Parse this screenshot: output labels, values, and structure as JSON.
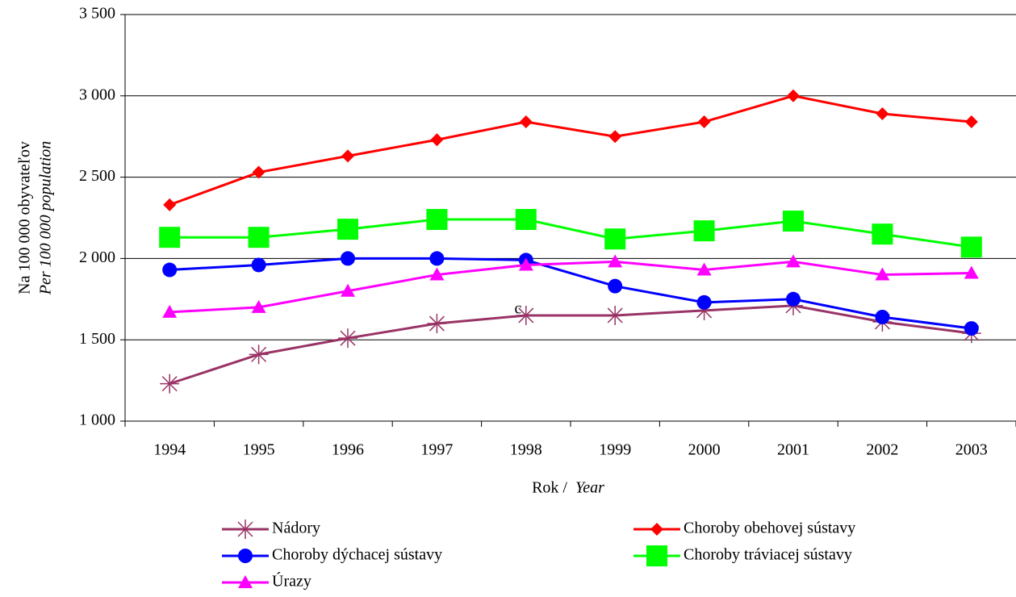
{
  "chart_data": {
    "type": "line",
    "ylabel": "Na 100 000 obyvateľov",
    "ylabel_en": "Per  100 000 population",
    "xlabel": "Rok /",
    "xlabel_en": "Year",
    "annotations": [
      "c"
    ],
    "categories": [
      "1994",
      "1995",
      "1996",
      "1997",
      "1998",
      "1999",
      "2000",
      "2001",
      "2002",
      "2003"
    ],
    "series": [
      {
        "name": "Nádory",
        "color": "#993366",
        "marker": "star",
        "values": [
          1230,
          1410,
          1510,
          1600,
          1650,
          1650,
          1680,
          1710,
          1610,
          1540
        ]
      },
      {
        "name": "Choroby obehovej sústavy",
        "color": "#ff0000",
        "marker": "diamond",
        "values": [
          2330,
          2530,
          2630,
          2730,
          2840,
          2750,
          2840,
          3000,
          2890,
          2840
        ]
      },
      {
        "name": "Choroby dýchacej sústavy",
        "color": "#0000ff",
        "marker": "circle",
        "values": [
          1930,
          1960,
          2000,
          2000,
          1990,
          1830,
          1730,
          1750,
          1640,
          1570
        ]
      },
      {
        "name": "Choroby tráviacej sústavy",
        "color": "#00ff00",
        "marker": "square",
        "values": [
          2130,
          2130,
          2180,
          2240,
          2240,
          2120,
          2170,
          2230,
          2150,
          2070
        ]
      },
      {
        "name": "Úrazy",
        "color": "#ff00ff",
        "marker": "triangle",
        "values": [
          1670,
          1700,
          1800,
          1900,
          1960,
          1980,
          1930,
          1980,
          1900,
          1910
        ]
      }
    ],
    "ylim": [
      1000,
      3500
    ],
    "yticks": [
      {
        "value": 1000,
        "label": "1 000"
      },
      {
        "value": 1500,
        "label": "1 500"
      },
      {
        "value": 2000,
        "label": "2 000"
      },
      {
        "value": 2500,
        "label": "2 500"
      },
      {
        "value": 3000,
        "label": "3 000"
      },
      {
        "value": 3500,
        "label": "3 500"
      }
    ],
    "grid": true
  }
}
